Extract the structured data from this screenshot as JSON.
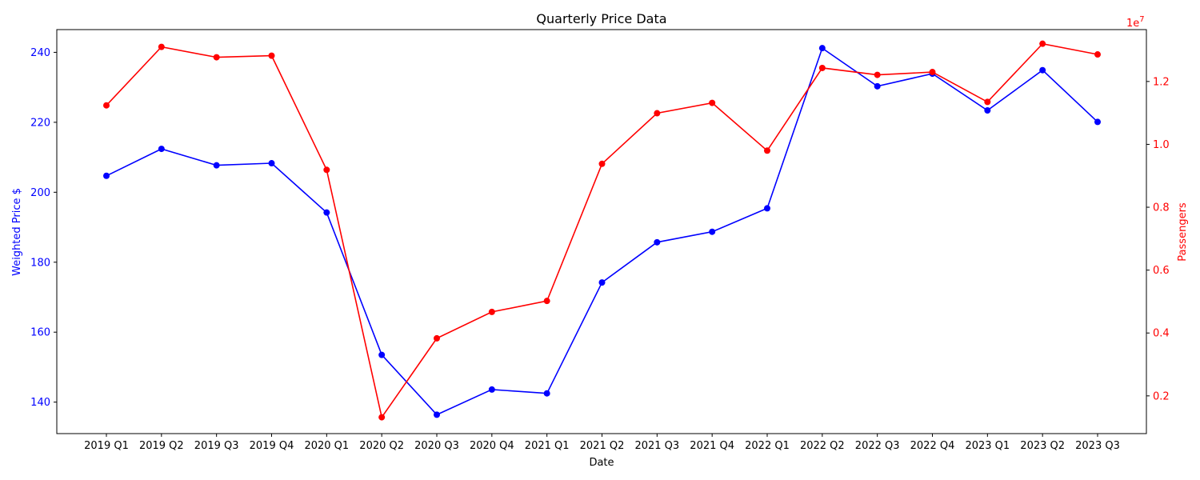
{
  "chart_data": {
    "type": "line",
    "title": "Quarterly Price Data",
    "xlabel": "Date",
    "ylabel_left": "Weighted Price $",
    "ylabel_right": "Passengers",
    "right_axis_multiplier": "1e7",
    "categories": [
      "2019 Q1",
      "2019 Q2",
      "2019 Q3",
      "2019 Q4",
      "2020 Q1",
      "2020 Q2",
      "2020 Q3",
      "2020 Q4",
      "2021 Q1",
      "2021 Q2",
      "2021 Q3",
      "2021 Q4",
      "2022 Q1",
      "2022 Q2",
      "2022 Q3",
      "2022 Q4",
      "2023 Q1",
      "2023 Q2",
      "2023 Q3"
    ],
    "left_ylim": [
      131,
      246.5
    ],
    "left_ticks": [
      140,
      160,
      180,
      200,
      220,
      240
    ],
    "right_ylim": [
      0.08,
      1.365
    ],
    "right_ticks": [
      0.2,
      0.4,
      0.6,
      0.8,
      1.0,
      1.2
    ],
    "series": [
      {
        "axis": "left",
        "color": "#0000ff",
        "values": [
          204.7,
          212.4,
          207.7,
          208.3,
          194.2,
          153.5,
          136.4,
          143.6,
          142.5,
          174.2,
          185.7,
          188.7,
          195.4,
          241.2,
          230.3,
          233.9,
          223.4,
          234.9,
          220.1
        ]
      },
      {
        "axis": "right",
        "color": "#ff0000",
        "values": [
          1.124,
          1.31,
          1.277,
          1.282,
          0.919,
          0.132,
          0.383,
          0.467,
          0.502,
          0.938,
          1.099,
          1.132,
          0.98,
          1.243,
          1.221,
          1.23,
          1.135,
          1.32,
          1.286
        ]
      }
    ],
    "grid": false,
    "legend": "none",
    "axis_colors": {
      "left": "#0000ff",
      "right": "#ff0000"
    }
  }
}
